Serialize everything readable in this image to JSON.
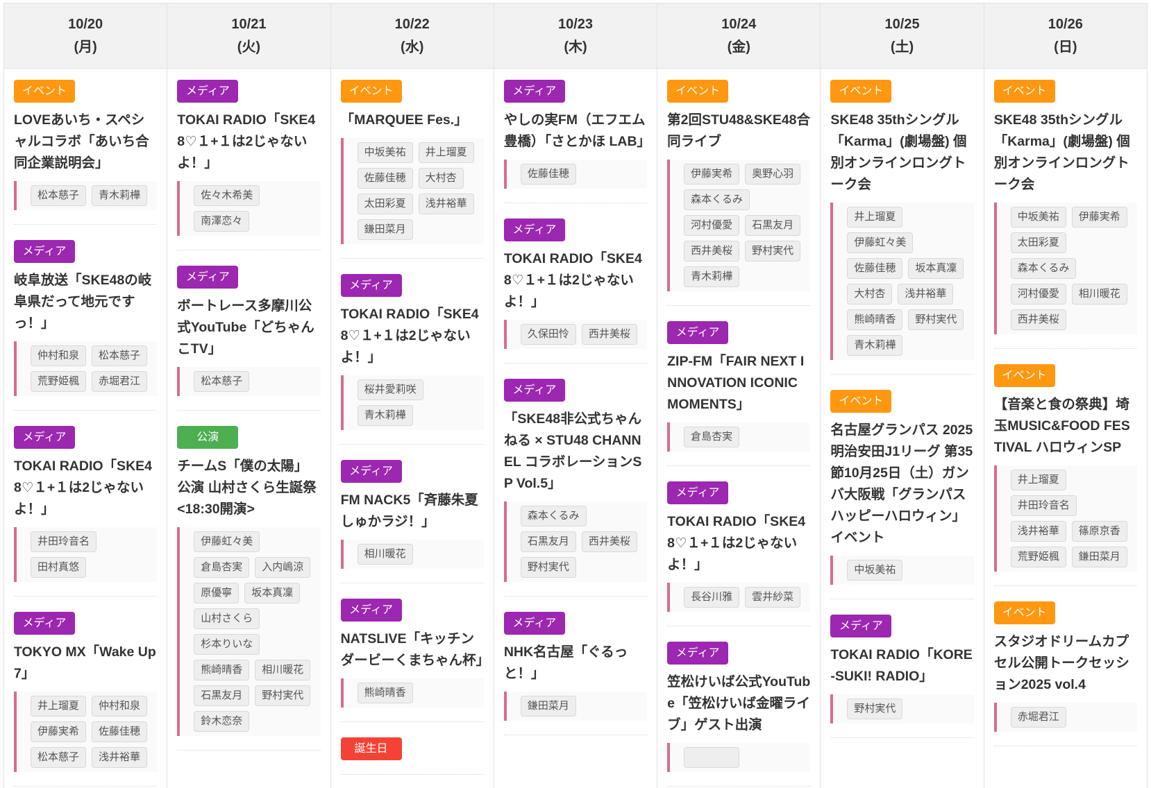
{
  "colors": {
    "イベント": "#ff9810",
    "メディア": "#9c27b0",
    "公演": "#4caf50",
    "誕生日": "#f44336"
  },
  "days": [
    {
      "date": "10/20",
      "weekday": "(月)",
      "events": [
        {
          "badge": "イベント",
          "title": "LOVEあいち・スペシャルコラボ「あいち合同企業説明会」",
          "members": [
            "松本慈子",
            "青木莉樺"
          ]
        },
        {
          "badge": "メディア",
          "title": "岐阜放送「SKE48の岐阜県だって地元ですっ！」",
          "members": [
            "仲村和泉",
            "松本慈子",
            "荒野姫楓",
            "赤堀君江"
          ]
        },
        {
          "badge": "メディア",
          "title": "TOKAI RADIO「SKE48♡１+１は2じゃないよ！」",
          "members": [
            "井田玲音名",
            "田村真悠"
          ]
        },
        {
          "badge": "メディア",
          "title": "TOKYO MX「Wake Up 7」",
          "members": [
            "井上瑠夏",
            "仲村和泉",
            "伊藤実希",
            "佐藤佳穂",
            "松本慈子",
            "浅井裕華"
          ]
        }
      ]
    },
    {
      "date": "10/21",
      "weekday": "(火)",
      "events": [
        {
          "badge": "メディア",
          "title": "TOKAI RADIO「SKE48♡１+１は2じゃないよ！」",
          "members": [
            "佐々木希美",
            "南澤恋々"
          ]
        },
        {
          "badge": "メディア",
          "title": "ボートレース多摩川公式YouTube「どちゃんこTV」",
          "members": [
            "松本慈子"
          ]
        },
        {
          "badge": "公演",
          "title": "チームS「僕の太陽」公演 山村さくら生誕祭 <18:30開演>",
          "members": [
            "伊藤虹々美",
            "倉島杏実",
            "入内嶋涼",
            "原優寧",
            "坂本真凜",
            "山村さくら",
            "杉本りいな",
            "熊崎晴香",
            "相川暖花",
            "石黒友月",
            "野村実代",
            "鈴木恋奈"
          ]
        }
      ]
    },
    {
      "date": "10/22",
      "weekday": "(水)",
      "events": [
        {
          "badge": "イベント",
          "title": "「MARQUEE Fes.」",
          "members": [
            "中坂美祐",
            "井上瑠夏",
            "佐藤佳穂",
            "大村杏",
            "太田彩夏",
            "浅井裕華",
            "鎌田菜月"
          ]
        },
        {
          "badge": "メディア",
          "title": "TOKAI RADIO「SKE48♡１+１は2じゃないよ！」",
          "members": [
            "桜井愛莉咲",
            "青木莉樺"
          ]
        },
        {
          "badge": "メディア",
          "title": "FM NACK5「斉藤朱夏 しゅかラジ！」",
          "members": [
            "相川暖花"
          ]
        },
        {
          "badge": "メディア",
          "title": "NATSLIVE「キッチンダービーくまちゃん杯」",
          "members": [
            "熊崎晴香"
          ]
        },
        {
          "badge": "誕生日",
          "title": "",
          "members": []
        }
      ]
    },
    {
      "date": "10/23",
      "weekday": "(木)",
      "events": [
        {
          "badge": "メディア",
          "title": "やしの実FM（エフエム豊橋）「さとかほ LAB」",
          "members": [
            "佐藤佳穂"
          ]
        },
        {
          "badge": "メディア",
          "title": "TOKAI RADIO「SKE48♡１+１は2じゃないよ！」",
          "members": [
            "久保田怜",
            "西井美桜"
          ]
        },
        {
          "badge": "メディア",
          "title": "「SKE48非公式ちゃんねる × STU48 CHANNEL コラボレーションSP Vol.5」",
          "members": [
            "森本くるみ",
            "石黒友月",
            "西井美桜",
            "野村実代"
          ]
        },
        {
          "badge": "メディア",
          "title": "NHK名古屋「ぐるっと！」",
          "members": [
            "鎌田菜月"
          ]
        }
      ]
    },
    {
      "date": "10/24",
      "weekday": "(金)",
      "events": [
        {
          "badge": "イベント",
          "title": "第2回STU48&SKE48合同ライブ",
          "members": [
            "伊藤実希",
            "奥野心羽",
            "森本くるみ",
            "河村優愛",
            "石黒友月",
            "西井美桜",
            "野村実代",
            "青木莉樺"
          ]
        },
        {
          "badge": "メディア",
          "title": "ZIP-FM「FAIR NEXT INNOVATION ICONIC MOMENTS」",
          "members": [
            "倉島杏実"
          ]
        },
        {
          "badge": "メディア",
          "title": "TOKAI RADIO「SKE48♡１+１は2じゃないよ！」",
          "members": [
            "長谷川雅",
            "雲井紗菜"
          ]
        },
        {
          "badge": "メディア",
          "title": "笠松けいば公式YouTube「笠松けいば金曜ライブ」ゲスト出演",
          "members": []
        }
      ]
    },
    {
      "date": "10/25",
      "weekday": "(土)",
      "events": [
        {
          "badge": "イベント",
          "title": "SKE48 35thシングル「Karma」(劇場盤) 個別オンラインロングトーク会",
          "members": [
            "井上瑠夏",
            "伊藤虹々美",
            "佐藤佳穂",
            "坂本真凜",
            "大村杏",
            "浅井裕華",
            "熊崎晴香",
            "野村実代",
            "青木莉樺"
          ]
        },
        {
          "badge": "イベント",
          "title": "名古屋グランパス 2025明治安田J1リーグ 第35節10月25日（土）ガンバ大阪戦「グランパス ハッピーハロウィン」イベント",
          "members": [
            "中坂美祐"
          ]
        },
        {
          "badge": "メディア",
          "title": "TOKAI RADIO「KORE-SUKI! RADIO」",
          "members": [
            "野村実代"
          ]
        }
      ]
    },
    {
      "date": "10/26",
      "weekday": "(日)",
      "events": [
        {
          "badge": "イベント",
          "title": "SKE48 35thシングル「Karma」(劇場盤) 個別オンラインロングトーク会",
          "members": [
            "中坂美祐",
            "伊藤実希",
            "太田彩夏",
            "森本くるみ",
            "河村優愛",
            "相川暖花",
            "西井美桜"
          ]
        },
        {
          "badge": "イベント",
          "title": "【音楽と食の祭典】埼玉MUSIC&FOOD FESTIVAL ハロウィンSP",
          "members": [
            "井上瑠夏",
            "井田玲音名",
            "浅井裕華",
            "篠原京香",
            "荒野姫楓",
            "鎌田菜月"
          ]
        },
        {
          "badge": "イベント",
          "title": "スタジオドリームカプセル公開トークセッション2025 vol.4",
          "members": [
            "赤堀君江"
          ]
        }
      ]
    }
  ]
}
